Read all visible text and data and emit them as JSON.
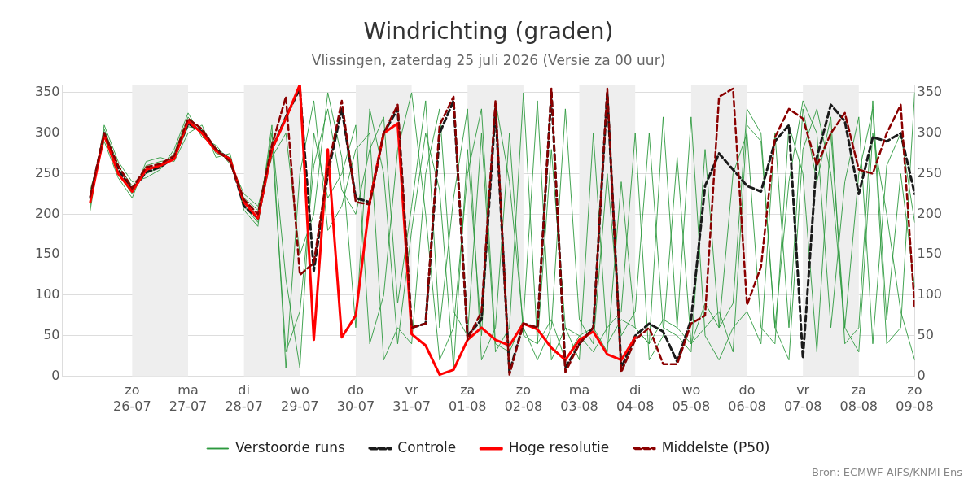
{
  "chart_data": {
    "type": "line",
    "title": "Windrichting (graden)",
    "subtitle": "Vlissingen, zaterdag 25 juli 2026 (Versie za 00 uur)",
    "x": [
      "2026-07-25T06:00",
      "2026-07-25T12:00",
      "2026-07-25T18:00",
      "2026-07-26T00:00",
      "2026-07-26T06:00",
      "2026-07-26T12:00",
      "2026-07-26T18:00",
      "2026-07-27T00:00",
      "2026-07-27T06:00",
      "2026-07-27T12:00",
      "2026-07-27T18:00",
      "2026-07-28T00:00",
      "2026-07-28T06:00",
      "2026-07-28T12:00",
      "2026-07-28T18:00",
      "2026-07-29T00:00",
      "2026-07-29T06:00",
      "2026-07-29T12:00",
      "2026-07-29T18:00",
      "2026-07-30T00:00",
      "2026-07-30T06:00",
      "2026-07-30T12:00",
      "2026-07-30T18:00",
      "2026-07-31T00:00",
      "2026-07-31T06:00",
      "2026-07-31T12:00",
      "2026-07-31T18:00",
      "2026-08-01T00:00",
      "2026-08-01T06:00",
      "2026-08-01T12:00",
      "2026-08-01T18:00",
      "2026-08-02T00:00",
      "2026-08-02T06:00",
      "2026-08-02T12:00",
      "2026-08-02T18:00",
      "2026-08-03T00:00",
      "2026-08-03T06:00",
      "2026-08-03T12:00",
      "2026-08-03T18:00",
      "2026-08-04T00:00",
      "2026-08-04T06:00",
      "2026-08-04T12:00",
      "2026-08-04T18:00",
      "2026-08-05T00:00",
      "2026-08-05T06:00",
      "2026-08-05T12:00",
      "2026-08-05T18:00",
      "2026-08-06T00:00",
      "2026-08-06T06:00",
      "2026-08-06T12:00",
      "2026-08-06T18:00",
      "2026-08-07T00:00",
      "2026-08-07T06:00",
      "2026-08-07T12:00",
      "2026-08-07T18:00",
      "2026-08-08T00:00",
      "2026-08-08T06:00",
      "2026-08-08T12:00",
      "2026-08-08T18:00",
      "2026-08-09T00:00"
    ],
    "series": [
      {
        "name": "Verstoorde runs",
        "color": "#2e9a3e",
        "line_style": "solid",
        "values": [
          210,
          305,
          260,
          235,
          250,
          258,
          275,
          320,
          298,
          282,
          262,
          220,
          205,
          290,
          30,
          80,
          260,
          330,
          230,
          200,
          280,
          320,
          90,
          210,
          340,
          60,
          220,
          330,
          20,
          60,
          300,
          50,
          40,
          280,
          60,
          20,
          300,
          40,
          70,
          60,
          40,
          320,
          60,
          40,
          90,
          60,
          250,
          300,
          60,
          40,
          310,
          250,
          30,
          300,
          60,
          250,
          330,
          40,
          60,
          350
        ]
      },
      {
        "color": "#2e9a3e",
        "line_style": "solid",
        "values": [
          225,
          295,
          250,
          225,
          260,
          265,
          268,
          308,
          305,
          275,
          270,
          210,
          190,
          300,
          120,
          10,
          300,
          220,
          250,
          310,
          40,
          100,
          280,
          350,
          200,
          20,
          60,
          250,
          330,
          40,
          30,
          70,
          340,
          20,
          60,
          50,
          30,
          60,
          80,
          300,
          20,
          50,
          270,
          40,
          60,
          80,
          30,
          310,
          290,
          60,
          20,
          280,
          330,
          250,
          60,
          30,
          300,
          200,
          80,
          20
        ]
      },
      {
        "color": "#2e9a3e",
        "line_style": "solid",
        "values": [
          205,
          310,
          265,
          240,
          245,
          255,
          280,
          325,
          295,
          285,
          265,
          225,
          210,
          270,
          300,
          150,
          200,
          350,
          270,
          60,
          330,
          250,
          40,
          180,
          300,
          230,
          10,
          280,
          50,
          340,
          240,
          60,
          20,
          60,
          330,
          70,
          40,
          250,
          50,
          80,
          300,
          60,
          50,
          30,
          280,
          60,
          90,
          330,
          300,
          60,
          240,
          340,
          300,
          60,
          240,
          320,
          40,
          260,
          300,
          190
        ]
      },
      {
        "color": "#2e9a3e",
        "line_style": "solid",
        "values": [
          230,
          290,
          245,
          220,
          265,
          270,
          265,
          300,
          310,
          270,
          275,
          205,
          185,
          310,
          10,
          250,
          340,
          180,
          210,
          280,
          300,
          20,
          60,
          40,
          250,
          330,
          80,
          50,
          300,
          30,
          60,
          350,
          40,
          70,
          20,
          50,
          60,
          30,
          240,
          60,
          40,
          70,
          60,
          320,
          50,
          20,
          60,
          80,
          40,
          300,
          60,
          330,
          240,
          320,
          40,
          60,
          340,
          70,
          250,
          110
        ]
      },
      {
        "name": "Controle",
        "color": "#1a1a1a",
        "line_style": "dashed",
        "values": [
          220,
          300,
          255,
          230,
          252,
          258,
          270,
          312,
          302,
          280,
          268,
          210,
          195,
          280,
          320,
          355,
          130,
          250,
          330,
          220,
          215,
          300,
          330,
          60,
          65,
          300,
          340,
          50,
          70,
          330,
          5,
          65,
          60,
          350,
          10,
          40,
          60,
          350,
          10,
          50,
          65,
          55,
          18,
          70,
          235,
          275,
          255,
          235,
          228,
          290,
          310,
          22,
          270,
          335,
          315,
          225,
          295,
          290,
          300,
          225
        ]
      },
      {
        "name": "Hoge resolutie",
        "color": "#ff0000",
        "line_style": "solid",
        "values": [
          215,
          298,
          250,
          228,
          255,
          260,
          268,
          315,
          300,
          278,
          268,
          215,
          195,
          280,
          318,
          360,
          45,
          280,
          48,
          75,
          215,
          300,
          312,
          52,
          38,
          2,
          8,
          45,
          60,
          45,
          38,
          65,
          58,
          35,
          20,
          45,
          55,
          27,
          20,
          48,
          null,
          null,
          null,
          null,
          null,
          null,
          null,
          null,
          null,
          null,
          null,
          null,
          null,
          null,
          null,
          null,
          null,
          null,
          null,
          null
        ]
      },
      {
        "name": "Middelste (P50)",
        "color": "#8b0000",
        "line_style": "dashed",
        "values": [
          222,
          300,
          260,
          232,
          258,
          262,
          272,
          318,
          305,
          280,
          265,
          218,
          200,
          285,
          345,
          125,
          140,
          255,
          340,
          215,
          212,
          300,
          335,
          60,
          65,
          310,
          345,
          45,
          80,
          340,
          2,
          65,
          60,
          355,
          5,
          40,
          60,
          355,
          5,
          45,
          60,
          15,
          15,
          65,
          75,
          345,
          355,
          88,
          135,
          295,
          330,
          318,
          260,
          300,
          325,
          255,
          250,
          300,
          335,
          85
        ]
      }
    ],
    "xlim": [
      "2026-07-24T18:00",
      "2026-08-09T00:00"
    ],
    "xticks": [
      {
        "value": "2026-07-26",
        "label": "zo\n26-07"
      },
      {
        "value": "2026-07-27",
        "label": "ma\n27-07"
      },
      {
        "value": "2026-07-28",
        "label": "di\n28-07"
      },
      {
        "value": "2026-07-29",
        "label": "wo\n29-07"
      },
      {
        "value": "2026-07-30",
        "label": "do\n30-07"
      },
      {
        "value": "2026-07-31",
        "label": "vr\n31-07"
      },
      {
        "value": "2026-08-01",
        "label": "za\n01-08"
      },
      {
        "value": "2026-08-02",
        "label": "zo\n02-08"
      },
      {
        "value": "2026-08-03",
        "label": "ma\n03-08"
      },
      {
        "value": "2026-08-04",
        "label": "di\n04-08"
      },
      {
        "value": "2026-08-05",
        "label": "wo\n05-08"
      },
      {
        "value": "2026-08-06",
        "label": "do\n06-08"
      },
      {
        "value": "2026-08-07",
        "label": "vr\n07-08"
      },
      {
        "value": "2026-08-08",
        "label": "za\n08-08"
      },
      {
        "value": "2026-08-09",
        "label": "zo\n09-08"
      }
    ],
    "ylim": [
      0,
      360
    ],
    "yticks": [
      0,
      50,
      100,
      150,
      200,
      250,
      300,
      350
    ],
    "y2lim": [
      0,
      360
    ],
    "y2ticks": [
      0,
      50,
      100,
      150,
      200,
      250,
      300,
      350
    ],
    "bands": [
      {
        "axis": "x",
        "from": "2026-07-26",
        "to": "2026-07-27",
        "color": "#eeeeee"
      },
      {
        "axis": "x",
        "from": "2026-07-28",
        "to": "2026-07-29",
        "color": "#eeeeee"
      },
      {
        "axis": "x",
        "from": "2026-07-30",
        "to": "2026-07-31",
        "color": "#eeeeee"
      },
      {
        "axis": "x",
        "from": "2026-08-01",
        "to": "2026-08-02",
        "color": "#eeeeee"
      },
      {
        "axis": "x",
        "from": "2026-08-03",
        "to": "2026-08-04",
        "color": "#eeeeee"
      },
      {
        "axis": "x",
        "from": "2026-08-05",
        "to": "2026-08-06",
        "color": "#eeeeee"
      },
      {
        "axis": "x",
        "from": "2026-08-07",
        "to": "2026-08-08",
        "color": "#eeeeee"
      }
    ],
    "grid": "y",
    "legend": "bottom",
    "marker": "none",
    "annotations": [
      "Bron: ECMWF AIFS/KNMI Ens"
    ]
  }
}
